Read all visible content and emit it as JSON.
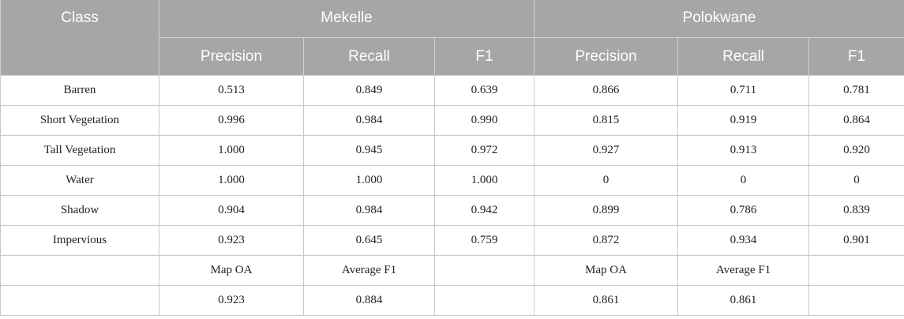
{
  "header": {
    "class_label": "Class",
    "groups": [
      "Mekelle",
      "Polokwane"
    ],
    "subcolumns": [
      "Precision",
      "Recall",
      "F1",
      "Precision",
      "Recall",
      "F1"
    ]
  },
  "rows": [
    {
      "cls": "Barren",
      "cells": [
        "0.513",
        "0.849",
        "0.639",
        "0.866",
        "0.711",
        "0.781"
      ]
    },
    {
      "cls": "Short Vegetation",
      "cells": [
        "0.996",
        "0.984",
        "0.990",
        "0.815",
        "0.919",
        "0.864"
      ]
    },
    {
      "cls": "Tall Vegetation",
      "cells": [
        "1.000",
        "0.945",
        "0.972",
        "0.927",
        "0.913",
        "0.920"
      ]
    },
    {
      "cls": "Water",
      "cells": [
        "1.000",
        "1.000",
        "1.000",
        "0",
        "0",
        "0"
      ]
    },
    {
      "cls": "Shadow",
      "cells": [
        "0.904",
        "0.984",
        "0.942",
        "0.899",
        "0.786",
        "0.839"
      ]
    },
    {
      "cls": "Impervious",
      "cells": [
        "0.923",
        "0.645",
        "0.759",
        "0.872",
        "0.934",
        "0.901"
      ]
    },
    {
      "cls": "",
      "cells": [
        "Map OA",
        "Average F1",
        "",
        "Map OA",
        "Average F1",
        ""
      ]
    },
    {
      "cls": "",
      "cells": [
        "0.923",
        "0.884",
        "",
        "0.861",
        "0.861",
        ""
      ]
    }
  ]
}
